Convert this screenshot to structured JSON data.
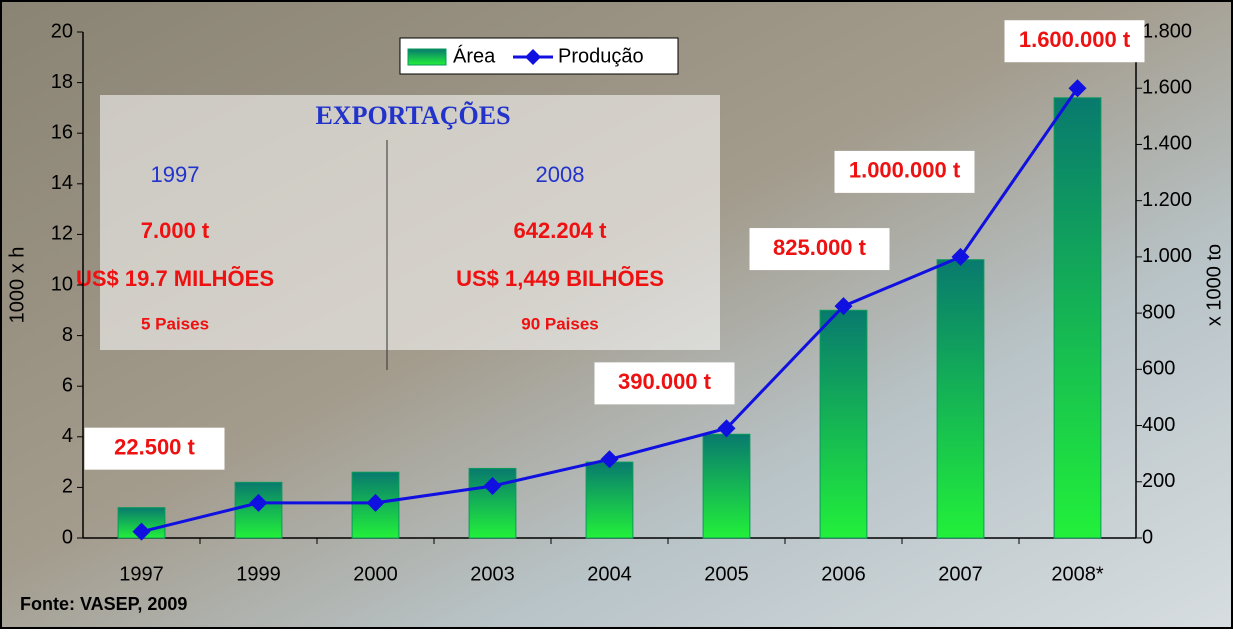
{
  "chart_data": {
    "type": "bar-line",
    "categories": [
      "1997",
      "1999",
      "2000",
      "2003",
      "2004",
      "2005",
      "2006",
      "2007",
      "2008*"
    ],
    "series": [
      {
        "name": "Área",
        "color": "#0a9a5a",
        "values": [
          1.2,
          2.2,
          2.6,
          2.75,
          3.0,
          4.1,
          9.0,
          11.0,
          17.4
        ]
      },
      {
        "name": "Produção",
        "color": "#1010e0",
        "axis": "y2",
        "values": [
          22.5,
          125,
          125,
          185,
          280,
          390,
          825,
          1000,
          1600
        ],
        "value_labels": [
          "22.500 t",
          null,
          null,
          null,
          null,
          "390.000 t",
          "825.000 t",
          "1.000.000 t",
          "1.600.000 t"
        ]
      }
    ],
    "y_label": "1000 x h",
    "y2_label": "x 1000 to",
    "ylim": [
      0,
      20
    ],
    "yticks": [
      0,
      2,
      4,
      6,
      8,
      10,
      12,
      14,
      16,
      18,
      20
    ],
    "y2lim": [
      0,
      1800
    ],
    "y2ticks": [
      0,
      200,
      400,
      600,
      800,
      {
        "value": 1000,
        "label": "1.000"
      },
      {
        "value": 1200,
        "label": "1.200"
      },
      {
        "value": 1400,
        "label": "1.400"
      },
      {
        "value": 1600,
        "label": "1.600"
      },
      {
        "value": 1800,
        "label": "1.800"
      }
    ],
    "legend": "top-center",
    "source": "Fonte: VASEP, 2009",
    "export_box": {
      "title": "EXPORTAÇÕES",
      "columns": [
        {
          "year": "1997",
          "lines": [
            "7.000 t",
            "US$ 19.7 MILHÕES",
            "5 Paises"
          ]
        },
        {
          "year": "2008",
          "lines": [
            "642.204 t",
            "US$ 1,449 BILHÕES",
            "90 Paises"
          ]
        }
      ]
    }
  }
}
